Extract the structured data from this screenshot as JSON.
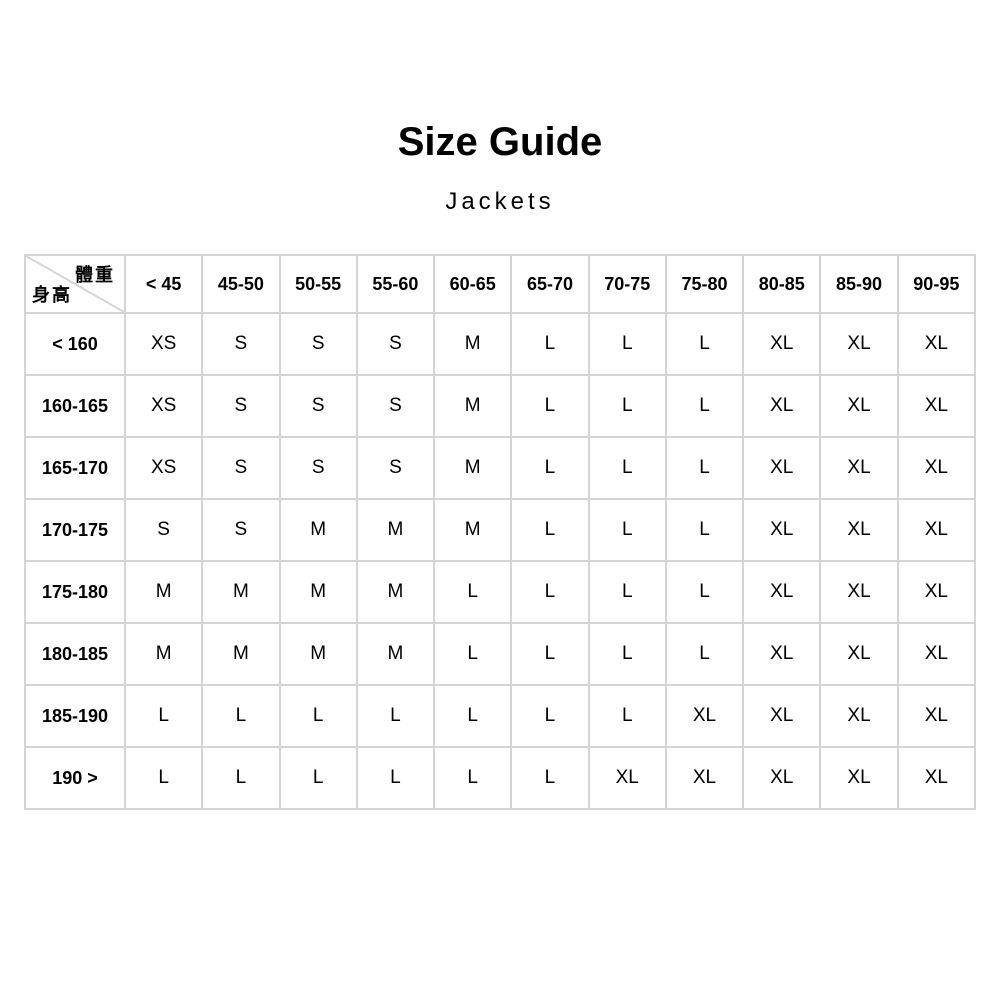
{
  "page": {
    "title": "Size Guide",
    "subtitle": "Jackets"
  },
  "colors": {
    "background": "#ffffff",
    "text": "#000000",
    "table_border": "#d4d4d4"
  },
  "table": {
    "corner_weight_label": "體重",
    "corner_height_label": "身高",
    "weight_headers": [
      "< 45",
      "45-50",
      "50-55",
      "55-60",
      "60-65",
      "65-70",
      "70-75",
      "75-80",
      "80-85",
      "85-90",
      "90-95"
    ],
    "rows": [
      {
        "height": "< 160",
        "sizes": [
          "XS",
          "S",
          "S",
          "S",
          "M",
          "L",
          "L",
          "L",
          "XL",
          "XL",
          "XL"
        ]
      },
      {
        "height": "160-165",
        "sizes": [
          "XS",
          "S",
          "S",
          "S",
          "M",
          "L",
          "L",
          "L",
          "XL",
          "XL",
          "XL"
        ]
      },
      {
        "height": "165-170",
        "sizes": [
          "XS",
          "S",
          "S",
          "S",
          "M",
          "L",
          "L",
          "L",
          "XL",
          "XL",
          "XL"
        ]
      },
      {
        "height": "170-175",
        "sizes": [
          "S",
          "S",
          "M",
          "M",
          "M",
          "L",
          "L",
          "L",
          "XL",
          "XL",
          "XL"
        ]
      },
      {
        "height": "175-180",
        "sizes": [
          "M",
          "M",
          "M",
          "M",
          "L",
          "L",
          "L",
          "L",
          "XL",
          "XL",
          "XL"
        ]
      },
      {
        "height": "180-185",
        "sizes": [
          "M",
          "M",
          "M",
          "M",
          "L",
          "L",
          "L",
          "L",
          "XL",
          "XL",
          "XL"
        ]
      },
      {
        "height": "185-190",
        "sizes": [
          "L",
          "L",
          "L",
          "L",
          "L",
          "L",
          "L",
          "XL",
          "XL",
          "XL",
          "XL"
        ]
      },
      {
        "height": "190 >",
        "sizes": [
          "L",
          "L",
          "L",
          "L",
          "L",
          "L",
          "XL",
          "XL",
          "XL",
          "XL",
          "XL"
        ]
      }
    ]
  }
}
